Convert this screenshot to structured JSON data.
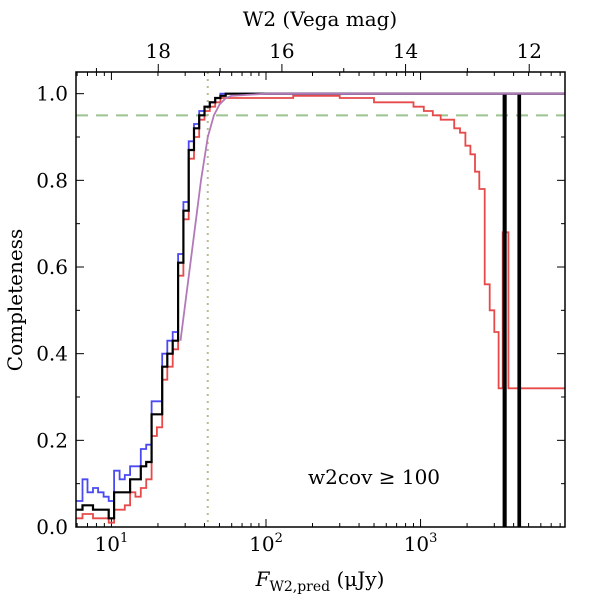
{
  "chart_data": {
    "type": "line",
    "xlabel_parts": {
      "main": "F",
      "sub": "W2,pred",
      "unit": " (μJy)"
    },
    "top_xlabel": "W2 (Vega mag)",
    "ylabel": "Completeness",
    "annotation": "w2cov ≥ 100",
    "x_scale": "log",
    "xlim": [
      5.9,
      8600
    ],
    "ylim": [
      0.0,
      1.05
    ],
    "y_ticks": [
      "0.0",
      "0.2",
      "0.4",
      "0.6",
      "0.8",
      "1.0"
    ],
    "x_ticks": [
      {
        "value": 10,
        "base": "10",
        "exp": "1"
      },
      {
        "value": 100,
        "base": "10",
        "exp": "2"
      },
      {
        "value": 1000,
        "base": "10",
        "exp": "3"
      }
    ],
    "top_ticks": [
      {
        "label": "18",
        "mag": 18
      },
      {
        "label": "16",
        "mag": 16
      },
      {
        "label": "14",
        "mag": 14
      },
      {
        "label": "12",
        "mag": 12
      }
    ],
    "mag_zero_point_uJy": 171.8,
    "reference_lines": [
      {
        "orientation": "horizontal",
        "value": 0.95,
        "style": "dashed",
        "color": "#9bc48f"
      },
      {
        "orientation": "vertical",
        "value": 42,
        "style": "dotted",
        "color": "#b9b98a"
      }
    ],
    "series": [
      {
        "color": "#e64a4a",
        "step": true,
        "x": [
          5.9,
          6.5,
          7.0,
          7.6,
          8.2,
          8.9,
          9.6,
          10.4,
          11.3,
          12.2,
          13.2,
          14.3,
          15.5,
          16.8,
          18.2,
          19.7,
          21.3,
          23.0,
          24.9,
          27.0,
          29.2,
          31.6,
          34.2,
          37.0,
          40.0,
          43.3,
          46.9,
          50.7,
          54.9,
          60,
          80,
          150,
          300,
          500,
          700,
          900,
          1050,
          1200,
          1350,
          1500,
          1650,
          1800,
          1950,
          2100,
          2250,
          2400,
          2600,
          2800,
          3000,
          3200,
          3400,
          3700,
          4200,
          8600
        ],
        "y": [
          0.02,
          0.03,
          0.03,
          0.02,
          0.02,
          0.02,
          0.01,
          0.04,
          0.04,
          0.05,
          0.08,
          0.07,
          0.09,
          0.11,
          0.21,
          0.23,
          0.34,
          0.37,
          0.41,
          0.58,
          0.71,
          0.85,
          0.9,
          0.94,
          0.96,
          0.97,
          0.98,
          0.99,
          0.99,
          0.99,
          0.99,
          0.995,
          0.99,
          0.98,
          0.98,
          0.97,
          0.96,
          0.95,
          0.94,
          0.94,
          0.92,
          0.91,
          0.88,
          0.86,
          0.82,
          0.78,
          0.56,
          0.5,
          0.45,
          0.32,
          0.68,
          0.32,
          0.32,
          0.32
        ]
      },
      {
        "color": "#4a4af0",
        "step": true,
        "x": [
          5.9,
          6.5,
          7.0,
          7.6,
          8.2,
          8.9,
          9.6,
          10.4,
          11.3,
          12.2,
          13.2,
          14.3,
          15.5,
          16.8,
          18.2,
          19.7,
          21.3,
          23.0,
          24.9,
          27.0,
          29.2,
          31.6,
          34.2,
          37.0,
          40.0,
          43.3,
          46.9,
          50.7,
          54.9,
          60,
          80,
          150,
          300,
          600,
          1000,
          2000,
          3000,
          3500,
          8600
        ],
        "y": [
          0.06,
          0.11,
          0.08,
          0.09,
          0.08,
          0.07,
          0.06,
          0.13,
          0.11,
          0.12,
          0.14,
          0.14,
          0.18,
          0.19,
          0.29,
          0.29,
          0.4,
          0.43,
          0.45,
          0.63,
          0.75,
          0.89,
          0.93,
          0.96,
          0.97,
          0.98,
          0.99,
          1.0,
          1.0,
          1.0,
          1.0,
          1.0,
          1.0,
          1.0,
          1.0,
          1.0,
          1.0,
          1.0,
          1.0
        ]
      },
      {
        "color": "#000000",
        "step": true,
        "x": [
          5.9,
          6.5,
          7.0,
          7.6,
          8.2,
          8.9,
          9.6,
          10.4,
          11.3,
          12.2,
          13.2,
          14.3,
          15.5,
          16.8,
          18.2,
          19.7,
          21.3,
          23.0,
          24.9,
          27.0,
          29.2,
          31.6,
          34.2,
          37.0,
          40.0,
          43.3,
          46.9,
          50.7,
          54.9,
          60,
          80,
          150,
          300,
          600,
          1000,
          2000,
          3000,
          3450,
          3550,
          4300,
          4400,
          8600
        ],
        "y": [
          0.04,
          0.05,
          0.05,
          0.04,
          0.04,
          0.04,
          0.02,
          0.08,
          0.08,
          0.08,
          0.11,
          0.11,
          0.14,
          0.15,
          0.26,
          0.26,
          0.37,
          0.4,
          0.43,
          0.61,
          0.73,
          0.87,
          0.92,
          0.95,
          0.97,
          0.98,
          0.99,
          0.995,
          1.0,
          1.0,
          1.0,
          1.0,
          1.0,
          1.0,
          1.0,
          1.0,
          1.0,
          0.0,
          1.0,
          0.0,
          1.0,
          1.0
        ]
      },
      {
        "color": "#b27ab8",
        "step": false,
        "x": [
          28,
          33,
          38,
          42,
          46,
          50,
          55,
          60,
          100,
          1000,
          8600
        ],
        "y": [
          0.43,
          0.63,
          0.8,
          0.9,
          0.95,
          0.975,
          0.99,
          0.995,
          1.0,
          1.0,
          1.0
        ]
      }
    ]
  }
}
